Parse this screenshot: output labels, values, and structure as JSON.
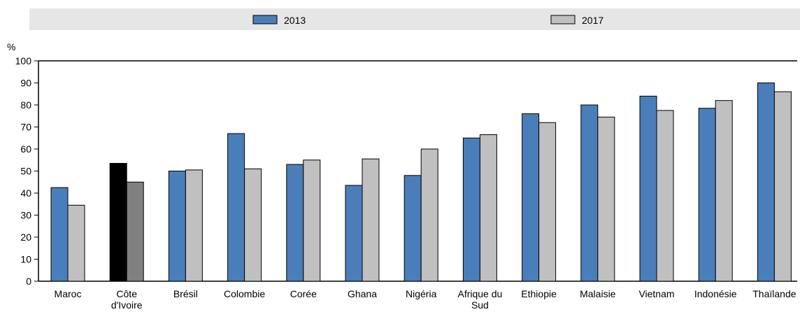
{
  "chart_data": {
    "type": "bar",
    "ylabel": "%",
    "ylim": [
      0,
      100
    ],
    "yticks": [
      0,
      10,
      20,
      30,
      40,
      50,
      60,
      70,
      80,
      90,
      100
    ],
    "grid": false,
    "legend_position": "top",
    "categories": [
      [
        "Maroc"
      ],
      [
        "Côte",
        "d'Ivoire"
      ],
      [
        "Brésil"
      ],
      [
        "Colombie"
      ],
      [
        "Corée"
      ],
      [
        "Ghana"
      ],
      [
        "Nigéria"
      ],
      [
        "Afrique du",
        "Sud"
      ],
      [
        "Ethiopie"
      ],
      [
        "Malaisie"
      ],
      [
        "Vietnam"
      ],
      [
        "Indonésie"
      ],
      [
        "Thaïlande"
      ]
    ],
    "series": [
      {
        "name": "2013",
        "color": "#4a7ebb",
        "values": [
          42.5,
          53.5,
          50,
          67,
          53,
          43.5,
          48,
          65,
          76,
          80,
          84,
          78.5,
          90
        ]
      },
      {
        "name": "2017",
        "color": "#c0c0c0",
        "values": [
          34.5,
          45,
          50.5,
          51,
          55,
          55.5,
          60,
          66.5,
          72,
          74.5,
          77.5,
          82,
          86
        ]
      }
    ],
    "highlight": {
      "category_index": 1,
      "colors": [
        "#000000",
        "#808080"
      ]
    }
  }
}
